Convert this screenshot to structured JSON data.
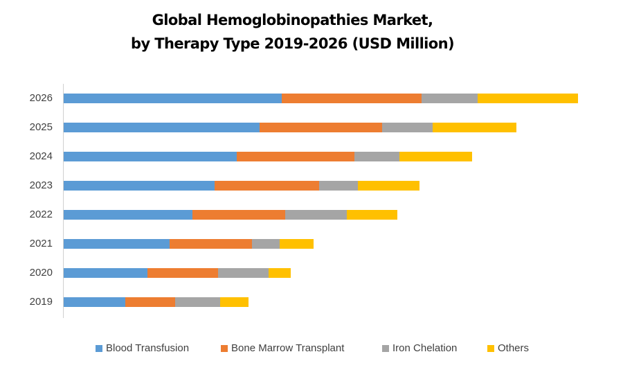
{
  "title_line1": "Global Hemoglobinopathies Market,",
  "title_line2": "by Therapy Type 2019-2026 (USD Million)",
  "colors": {
    "blood_transfusion": "#5B9BD5",
    "bone_marrow_transplant": "#ED7D31",
    "iron_chelation": "#A5A5A5",
    "others": "#FFC000"
  },
  "legend": [
    {
      "label": "Blood Transfusion",
      "color": "#5B9BD5"
    },
    {
      "label": "Bone Marrow Transplant",
      "color": "#ED7D31"
    },
    {
      "label": "Iron Chelation",
      "color": "#A5A5A5"
    },
    {
      "label": "Others",
      "color": "#FFC000"
    }
  ],
  "chart_data": {
    "type": "bar",
    "orientation": "horizontal",
    "stacked": true,
    "title": "Global Hemoglobinopathies Market, by Therapy Type 2019-2026 (USD Million)",
    "xlabel": "",
    "ylabel": "",
    "categories": [
      "2026",
      "2025",
      "2024",
      "2023",
      "2022",
      "2021",
      "2020",
      "2019"
    ],
    "series": [
      {
        "name": "Blood Transfusion",
        "color": "#5B9BD5",
        "values": [
          315,
          283,
          250,
          218,
          186,
          153,
          121,
          89
        ]
      },
      {
        "name": "Bone Marrow Transplant",
        "color": "#ED7D31",
        "values": [
          202,
          177,
          170,
          151,
          134,
          119,
          102,
          72
        ]
      },
      {
        "name": "Iron Chelation",
        "color": "#A5A5A5",
        "values": [
          81,
          73,
          65,
          56,
          89,
          40,
          73,
          65
        ]
      },
      {
        "name": "Others",
        "color": "#FFC000",
        "values": [
          145,
          121,
          105,
          89,
          73,
          49,
          32,
          41
        ]
      }
    ],
    "value_axis_visible": false,
    "grid": false,
    "legend_position": "bottom",
    "note": "No value-axis ticks shown; values are relative estimates proportional to bar lengths"
  }
}
